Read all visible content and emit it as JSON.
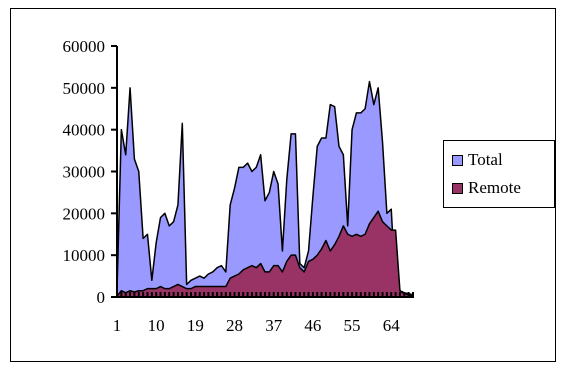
{
  "chart_data": {
    "type": "area",
    "title": "",
    "xlabel": "",
    "ylabel": "",
    "ylim": [
      0,
      60000
    ],
    "yticks": [
      0,
      10000,
      20000,
      30000,
      40000,
      50000,
      60000
    ],
    "ytick_labels": [
      "0",
      "10000",
      "20000",
      "30000",
      "40000",
      "50000",
      "60000"
    ],
    "x_count": 69,
    "xticks": [
      1,
      10,
      19,
      28,
      37,
      46,
      55,
      64
    ],
    "xtick_labels": [
      "1",
      "10",
      "19",
      "28",
      "37",
      "46",
      "55",
      "64"
    ],
    "grid": false,
    "legend_position": "right",
    "series": [
      {
        "name": "Total",
        "color": "#9999ff",
        "values": [
          1500,
          40000,
          34000,
          50000,
          33000,
          30000,
          14000,
          15000,
          4000,
          13000,
          19000,
          20000,
          17000,
          18000,
          22000,
          41500,
          3000,
          4000,
          4500,
          5000,
          4500,
          5500,
          6000,
          7000,
          7500,
          6000,
          22000,
          26000,
          31000,
          31000,
          32000,
          30000,
          31000,
          34000,
          23000,
          25000,
          30000,
          27000,
          11000,
          28000,
          39000,
          39000,
          8000,
          7000,
          11000,
          24000,
          36000,
          38000,
          38000,
          46000,
          45500,
          36000,
          34000,
          17000,
          40000,
          44000,
          44000,
          45000,
          51500,
          46000,
          50000,
          37000,
          20000,
          21000,
          2000,
          1500,
          1000,
          800,
          500
        ]
      },
      {
        "name": "Remote",
        "color": "#993366",
        "values": [
          200,
          1500,
          1000,
          1500,
          1200,
          1500,
          1500,
          2000,
          2000,
          2000,
          2500,
          2000,
          2000,
          2500,
          3000,
          2500,
          2000,
          2000,
          2500,
          2500,
          2500,
          2500,
          2500,
          2500,
          2500,
          2500,
          4500,
          5000,
          5500,
          6500,
          7000,
          7500,
          7000,
          8000,
          6000,
          6000,
          7500,
          7500,
          6000,
          8500,
          10000,
          10000,
          7000,
          6000,
          8500,
          9000,
          10000,
          11500,
          13500,
          11000,
          12500,
          14500,
          17000,
          15000,
          14500,
          15000,
          14500,
          15000,
          17500,
          19000,
          20500,
          18000,
          17000,
          16000,
          16000,
          1500,
          800,
          500,
          300
        ]
      }
    ]
  }
}
